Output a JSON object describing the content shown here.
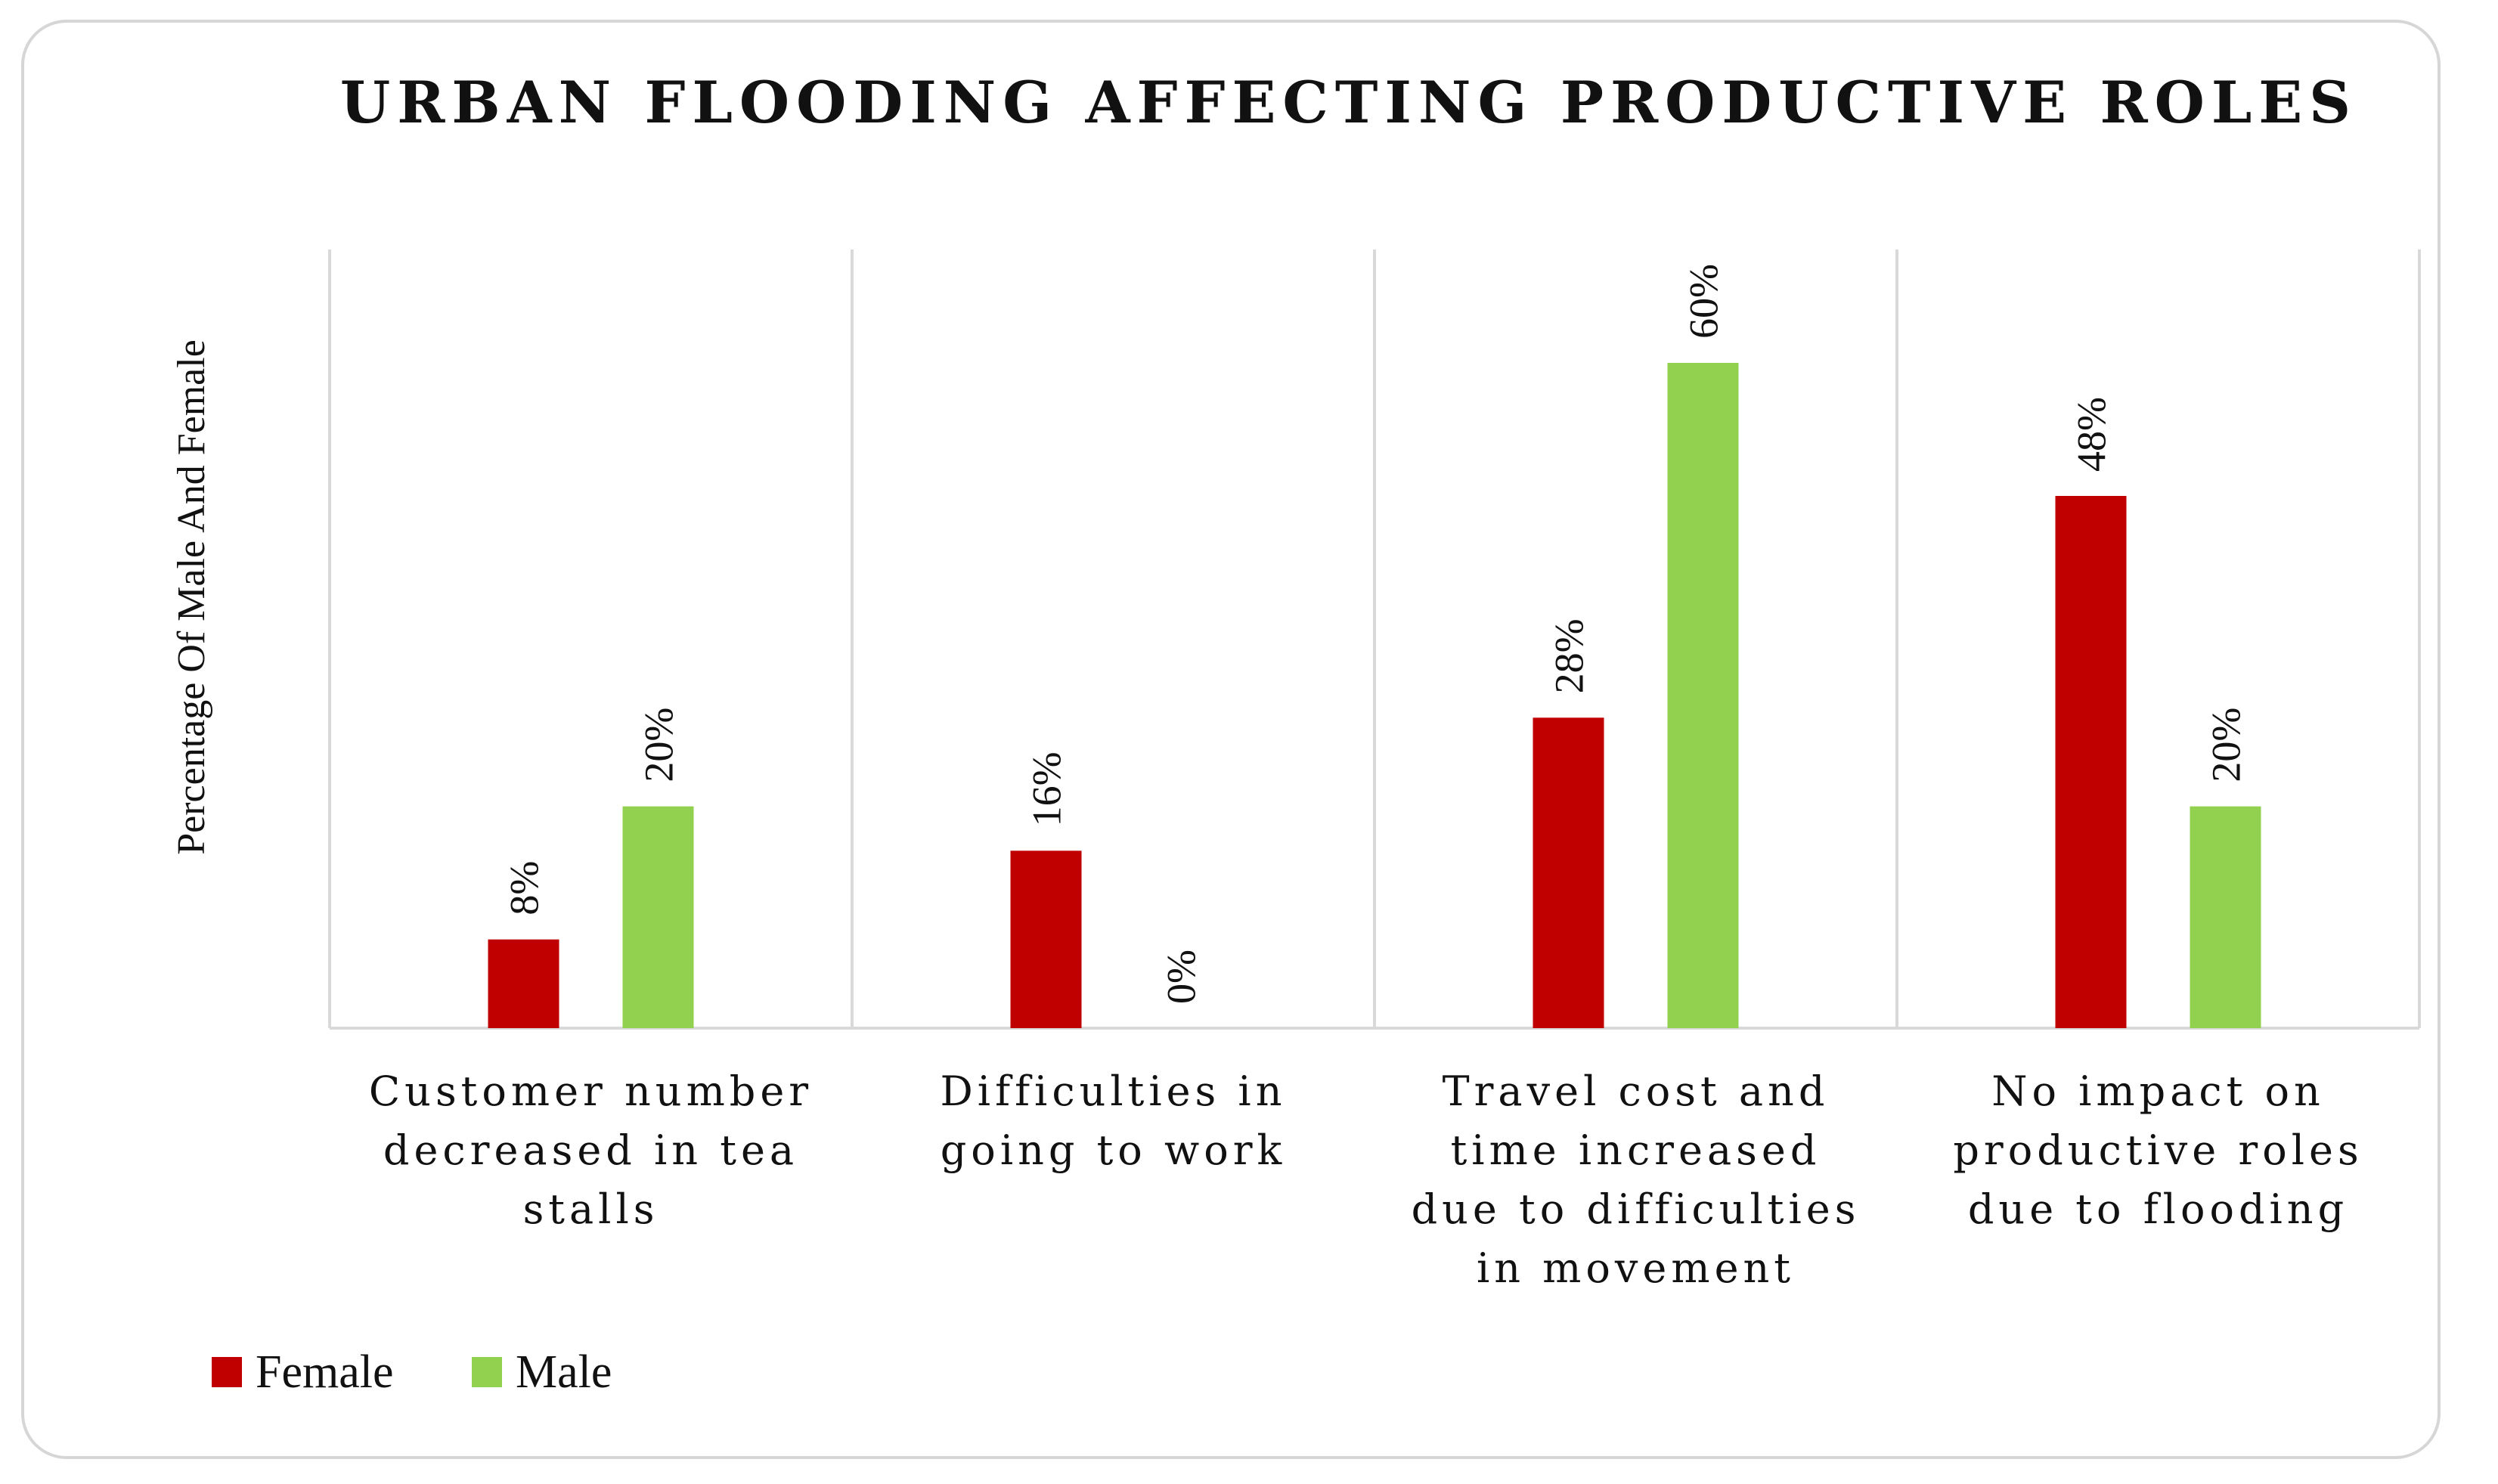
{
  "chart_data": {
    "type": "bar",
    "title": "URBAN FLOODING AFFECTING PRODUCTIVE ROLES",
    "ylabel": "Percentage Of Male And Female",
    "xlabel": "",
    "ylim": [
      0,
      70
    ],
    "categories": [
      [
        "Customer number",
        "decreased in tea",
        "stalls"
      ],
      [
        "Difficulties in",
        "going to work"
      ],
      [
        "Travel cost and",
        "time increased",
        "due to difficulties",
        "in movement"
      ],
      [
        "No impact on",
        "productive roles",
        "due to flooding"
      ]
    ],
    "series": [
      {
        "name": "Female",
        "color": "#c00000",
        "values": [
          8,
          16,
          28,
          48
        ],
        "labels": [
          "8%",
          "16%",
          "28%",
          "48%"
        ]
      },
      {
        "name": "Male",
        "color": "#92d050",
        "values": [
          20,
          0,
          60,
          20
        ],
        "labels": [
          "20%",
          "0%",
          "60%",
          "20%"
        ]
      }
    ],
    "legend_position": "bottom-left",
    "grid": false
  }
}
